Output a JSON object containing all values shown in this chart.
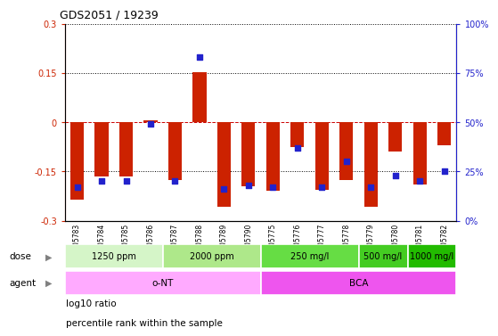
{
  "title": "GDS2051 / 19239",
  "samples": [
    "GSM105783",
    "GSM105784",
    "GSM105785",
    "GSM105786",
    "GSM105787",
    "GSM105788",
    "GSM105789",
    "GSM105790",
    "GSM105775",
    "GSM105776",
    "GSM105777",
    "GSM105778",
    "GSM105779",
    "GSM105780",
    "GSM105781",
    "GSM105782"
  ],
  "log10_ratio": [
    -0.235,
    -0.165,
    -0.165,
    0.005,
    -0.175,
    0.152,
    -0.258,
    -0.195,
    -0.21,
    -0.075,
    -0.205,
    -0.175,
    -0.258,
    -0.09,
    -0.19,
    -0.07
  ],
  "percentile_rank": [
    17,
    20,
    20,
    49,
    20,
    83,
    16,
    18,
    17,
    37,
    17,
    30,
    17,
    23,
    20,
    25
  ],
  "dose_groups": [
    {
      "label": "1250 ppm",
      "start": 0,
      "end": 4,
      "color": "#d5f5c8"
    },
    {
      "label": "2000 ppm",
      "start": 4,
      "end": 8,
      "color": "#aee88a"
    },
    {
      "label": "250 mg/l",
      "start": 8,
      "end": 12,
      "color": "#66dd44"
    },
    {
      "label": "500 mg/l",
      "start": 12,
      "end": 14,
      "color": "#44cc22"
    },
    {
      "label": "1000 mg/l",
      "start": 14,
      "end": 16,
      "color": "#22bb00"
    }
  ],
  "agent_groups": [
    {
      "label": "o-NT",
      "start": 0,
      "end": 8,
      "color": "#ffaaff"
    },
    {
      "label": "BCA",
      "start": 8,
      "end": 16,
      "color": "#ee55ee"
    }
  ],
  "ylim": [
    -0.3,
    0.3
  ],
  "yticks": [
    -0.3,
    -0.15,
    0,
    0.15,
    0.3
  ],
  "ytick_labels_left": [
    "-0.3",
    "-0.15",
    "0",
    "0.15",
    "0.3"
  ],
  "bar_color": "#cc2200",
  "dot_color": "#2222cc",
  "hline_color": "#cc0000",
  "dot_size": 22,
  "bar_width": 0.55,
  "label_log10": "log10 ratio",
  "label_percentile": "percentile rank within the sample"
}
